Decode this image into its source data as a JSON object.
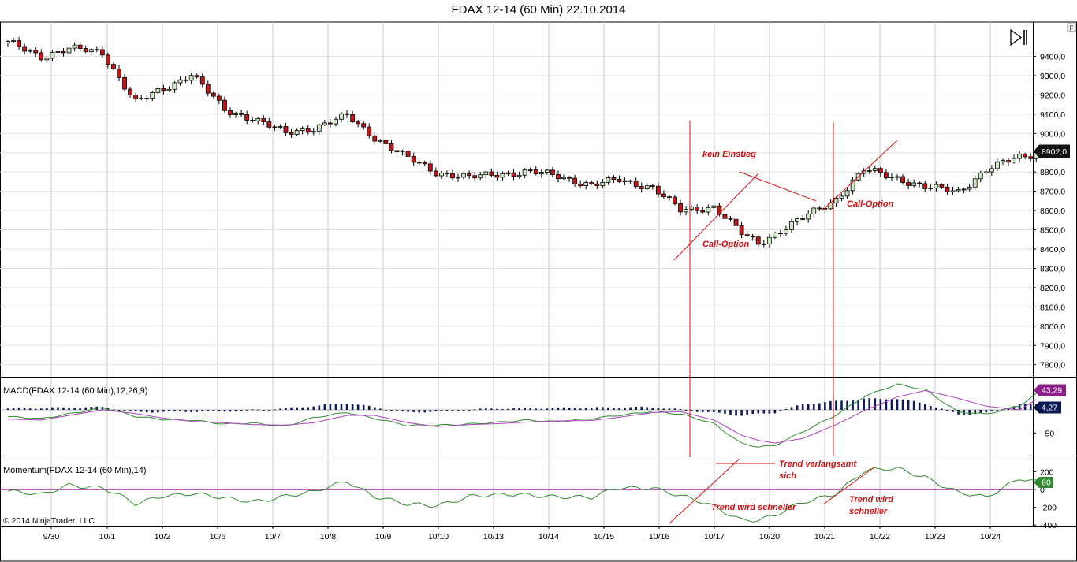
{
  "title": "FDAX 12-14 (60 Min)  22.10.2014",
  "copyright": "© 2014 NinjaTrader, LLC",
  "toolbar": {
    "corner_label": "F"
  },
  "colors": {
    "up": "#cde9c3",
    "down": "#c01818",
    "macd": "#2e8b2e",
    "signal": "#b040c0",
    "hist": "#0c1a55",
    "momentum": "#2e8b2e",
    "zero": "#a000a0",
    "annotation": "#d01010",
    "grid": "#c8c8c8"
  },
  "chart_data": [
    {
      "type": "candlestick",
      "name": "FDAX 12-14 (60 Min)",
      "x_tick_labels": [
        "9/30",
        "10/1",
        "10/2",
        "10/6",
        "10/7",
        "10/8",
        "10/9",
        "10/10",
        "10/13",
        "10/14",
        "10/15",
        "10/16",
        "10/17",
        "10/20",
        "10/21",
        "10/22",
        "10/23",
        "10/24"
      ],
      "y_tick_labels": [
        "9400,0",
        "9300,0",
        "9200,0",
        "9100,0",
        "9000,0",
        "8900,0",
        "8800,0",
        "8700,0",
        "8600,0",
        "8500,0",
        "8400,0",
        "8300,0",
        "8200,0",
        "8100,0",
        "8000,0",
        "7900,0",
        "7800,0"
      ],
      "ylim": [
        7740,
        9520
      ],
      "last_value_label": "8902,0",
      "close_path": [
        [
          0,
          9470
        ],
        [
          6,
          9400
        ],
        [
          11,
          9440
        ],
        [
          17,
          9420
        ],
        [
          23,
          9160
        ],
        [
          28,
          9230
        ],
        [
          33,
          9310
        ],
        [
          39,
          9120
        ],
        [
          44,
          9080
        ],
        [
          50,
          9000
        ],
        [
          55,
          9030
        ],
        [
          61,
          9090
        ],
        [
          66,
          8980
        ],
        [
          72,
          8870
        ],
        [
          77,
          8800
        ],
        [
          83,
          8770
        ],
        [
          88,
          8790
        ],
        [
          94,
          8800
        ],
        [
          99,
          8780
        ],
        [
          105,
          8730
        ],
        [
          110,
          8760
        ],
        [
          116,
          8720
        ],
        [
          121,
          8600
        ],
        [
          127,
          8620
        ],
        [
          132,
          8480
        ],
        [
          135,
          8430
        ],
        [
          138,
          8480
        ],
        [
          143,
          8560
        ],
        [
          149,
          8660
        ],
        [
          154,
          8810
        ],
        [
          160,
          8770
        ],
        [
          165,
          8720
        ],
        [
          171,
          8700
        ],
        [
          176,
          8810
        ],
        [
          182,
          8880
        ],
        [
          186,
          8902
        ]
      ],
      "annotations": [
        "kein Einstieg",
        "Call-Option",
        "Call-Option"
      ]
    },
    {
      "type": "line",
      "name": "MACD(FDAX 12-14 (60 Min),12,26,9)",
      "y_tick_labels": [
        "-50"
      ],
      "ylim": [
        -100,
        100
      ],
      "value_labels": [
        "43,29",
        "4,27"
      ],
      "macd_path": [
        [
          0,
          -15
        ],
        [
          6,
          -20
        ],
        [
          11,
          -8
        ],
        [
          17,
          5
        ],
        [
          23,
          -15
        ],
        [
          28,
          -20
        ],
        [
          33,
          -22
        ],
        [
          39,
          -32
        ],
        [
          44,
          -28
        ],
        [
          50,
          -35
        ],
        [
          55,
          -18
        ],
        [
          61,
          -5
        ],
        [
          66,
          -18
        ],
        [
          72,
          -35
        ],
        [
          77,
          -33
        ],
        [
          83,
          -30
        ],
        [
          88,
          -28
        ],
        [
          94,
          -22
        ],
        [
          99,
          -25
        ],
        [
          105,
          -20
        ],
        [
          110,
          -12
        ],
        [
          116,
          -2
        ],
        [
          121,
          -10
        ],
        [
          127,
          -30
        ],
        [
          132,
          -72
        ],
        [
          135,
          -80
        ],
        [
          138,
          -78
        ],
        [
          143,
          -48
        ],
        [
          149,
          -10
        ],
        [
          154,
          28
        ],
        [
          160,
          55
        ],
        [
          165,
          45
        ],
        [
          171,
          -5
        ],
        [
          176,
          -10
        ],
        [
          182,
          10
        ],
        [
          186,
          43
        ]
      ],
      "signal_path": [
        [
          0,
          -20
        ],
        [
          6,
          -22
        ],
        [
          11,
          -12
        ],
        [
          17,
          0
        ],
        [
          23,
          -8
        ],
        [
          28,
          -18
        ],
        [
          33,
          -25
        ],
        [
          39,
          -28
        ],
        [
          44,
          -32
        ],
        [
          50,
          -33
        ],
        [
          55,
          -28
        ],
        [
          61,
          -12
        ],
        [
          66,
          -12
        ],
        [
          72,
          -28
        ],
        [
          77,
          -36
        ],
        [
          83,
          -32
        ],
        [
          88,
          -30
        ],
        [
          94,
          -26
        ],
        [
          99,
          -24
        ],
        [
          105,
          -23
        ],
        [
          110,
          -16
        ],
        [
          116,
          -6
        ],
        [
          121,
          -4
        ],
        [
          127,
          -22
        ],
        [
          132,
          -55
        ],
        [
          135,
          -66
        ],
        [
          138,
          -72
        ],
        [
          143,
          -62
        ],
        [
          149,
          -32
        ],
        [
          154,
          -2
        ],
        [
          160,
          28
        ],
        [
          165,
          42
        ],
        [
          171,
          25
        ],
        [
          176,
          8
        ],
        [
          182,
          0
        ],
        [
          186,
          30
        ]
      ],
      "histogram_path": [
        [
          0,
          3
        ],
        [
          17,
          6
        ],
        [
          23,
          -5
        ],
        [
          39,
          -3
        ],
        [
          50,
          3
        ],
        [
          61,
          15
        ],
        [
          72,
          -6
        ],
        [
          88,
          3
        ],
        [
          99,
          4
        ],
        [
          116,
          6
        ],
        [
          132,
          -12
        ],
        [
          138,
          -6
        ],
        [
          143,
          12
        ],
        [
          154,
          24
        ],
        [
          160,
          24
        ],
        [
          165,
          14
        ],
        [
          171,
          -10
        ],
        [
          176,
          -7
        ],
        [
          182,
          12
        ],
        [
          186,
          12
        ]
      ]
    },
    {
      "type": "line",
      "name": "Momentum(FDAX 12-14 (60 Min),14)",
      "y_tick_labels": [
        "200",
        "0",
        "-200",
        "-400"
      ],
      "ylim": [
        -400,
        300
      ],
      "last_value_label": "80",
      "momentum_path": [
        [
          0,
          -20
        ],
        [
          6,
          -70
        ],
        [
          11,
          60
        ],
        [
          17,
          20
        ],
        [
          23,
          -170
        ],
        [
          28,
          -60
        ],
        [
          33,
          -40
        ],
        [
          39,
          -110
        ],
        [
          44,
          -130
        ],
        [
          50,
          -70
        ],
        [
          55,
          -40
        ],
        [
          61,
          100
        ],
        [
          66,
          -70
        ],
        [
          72,
          -180
        ],
        [
          77,
          -180
        ],
        [
          83,
          -70
        ],
        [
          88,
          -70
        ],
        [
          94,
          -60
        ],
        [
          99,
          -70
        ],
        [
          105,
          -100
        ],
        [
          110,
          20
        ],
        [
          116,
          30
        ],
        [
          121,
          -80
        ],
        [
          127,
          -190
        ],
        [
          132,
          -330
        ],
        [
          135,
          -340
        ],
        [
          138,
          -300
        ],
        [
          143,
          -150
        ],
        [
          149,
          -30
        ],
        [
          154,
          200
        ],
        [
          160,
          230
        ],
        [
          165,
          150
        ],
        [
          171,
          -40
        ],
        [
          176,
          -100
        ],
        [
          182,
          140
        ],
        [
          186,
          80
        ]
      ],
      "annotations": [
        "Trend verlangsamt",
        "sich",
        "Trend wird schneller",
        "Trend wird",
        "schneller"
      ]
    }
  ]
}
